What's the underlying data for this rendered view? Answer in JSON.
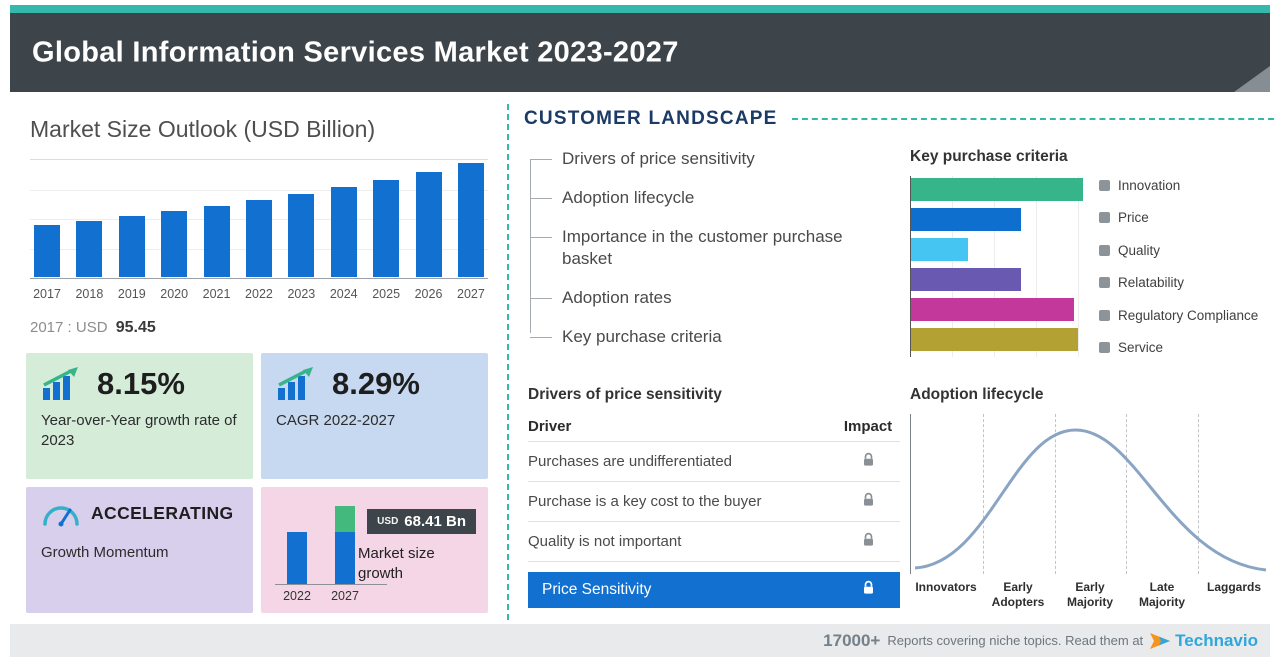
{
  "header": {
    "title": "Global Information Services Market 2023-2027"
  },
  "left_panel": {
    "chart_title": "Market Size Outlook (USD Billion)",
    "base_year_note": {
      "label": "2017 : USD",
      "value": "95.45"
    },
    "cards": {
      "yoy": {
        "value": "8.15%",
        "label": "Year-over-Year growth rate of 2023"
      },
      "cagr": {
        "value": "8.29%",
        "label": "CAGR 2022-2027"
      },
      "momentum": {
        "value": "ACCELERATING",
        "label": "Growth Momentum"
      },
      "growth": {
        "badge_currency": "USD",
        "badge_value": "68.41 Bn",
        "label": "Market size growth"
      }
    }
  },
  "right_panel": {
    "section_title": "CUSTOMER LANDSCAPE",
    "landscape_items": [
      "Drivers of price sensitivity",
      "Adoption lifecycle",
      "Importance in the customer purchase basket",
      "Adoption rates",
      "Key purchase criteria"
    ],
    "drivers_table": {
      "title": "Drivers of price sensitivity",
      "columns": {
        "driver": "Driver",
        "impact": "Impact"
      },
      "rows": [
        "Purchases are undifferentiated",
        "Purchase is a key cost to the buyer",
        "Quality is not important"
      ],
      "highlight_row": "Price Sensitivity"
    }
  },
  "footer": {
    "count": "17000+",
    "text": "Reports covering niche topics. Read them at",
    "brand": "Technavio"
  },
  "colors": {
    "accent_teal": "#35b8ac",
    "header_gray": "#3d454a",
    "bar_blue": "#1170d0",
    "navy": "#1b3a66",
    "card_green": "#d5ecd9",
    "card_blue": "#c6d9f1",
    "card_purple": "#d7cfec",
    "card_pink": "#f4d6e7",
    "badge_dark": "#3d454a",
    "footer_bg": "#e8eaeb",
    "logo_blue": "#2ea7de"
  },
  "chart_data": [
    {
      "type": "bar",
      "title": "Market Size Outlook (USD Billion)",
      "categories": [
        "2017",
        "2018",
        "2019",
        "2020",
        "2021",
        "2022",
        "2023",
        "2024",
        "2025",
        "2026",
        "2027"
      ],
      "values": [
        95.45,
        103.1,
        111.4,
        120.3,
        130.0,
        139.9,
        151.3,
        163.7,
        177.2,
        191.8,
        208.3
      ],
      "unit": "USD Billion",
      "labeled_point": "2017 : USD 95.45",
      "note": "Only 2017 labeled on image; later values estimated from bar heights consistent with 8.15% YoY 2023 and 8.29% CAGR 2022-2027",
      "bar_color": "#1170d0",
      "ylim": [
        0,
        220
      ],
      "grid": true
    },
    {
      "type": "bar",
      "orientation": "horizontal",
      "title": "Key purchase criteria",
      "categories": [
        "Innovation",
        "Price",
        "Quality",
        "Relatability",
        "Regulatory Compliance",
        "Service"
      ],
      "values": [
        100,
        64,
        33,
        64,
        95,
        97
      ],
      "unit": "relative bar length (axis unlabeled)",
      "colors": [
        "#36b48a",
        "#0f6fce",
        "#45c6f2",
        "#6a59b0",
        "#c2399b",
        "#b3a233"
      ],
      "legend_marker_color": "#8d9499",
      "legend_position": "right",
      "grid": true
    },
    {
      "type": "area",
      "title": "Adoption lifecycle",
      "stages": [
        "Innovators",
        "Early Adopters",
        "Early Majority",
        "Late Majority",
        "Laggards"
      ],
      "shape": "bell curve with dashed stage separators",
      "line_color": "#8aa4c4"
    },
    {
      "type": "bar",
      "title": "Market size growth",
      "categories": [
        "2022",
        "2027"
      ],
      "values": [
        139.9,
        208.3
      ],
      "unit": "USD Billion (estimated; increment labeled USD 68.41 Bn)",
      "growth_label": "USD 68.41 Bn",
      "bar_color": "#1170d0",
      "increment_color": "#43b97e"
    }
  ]
}
